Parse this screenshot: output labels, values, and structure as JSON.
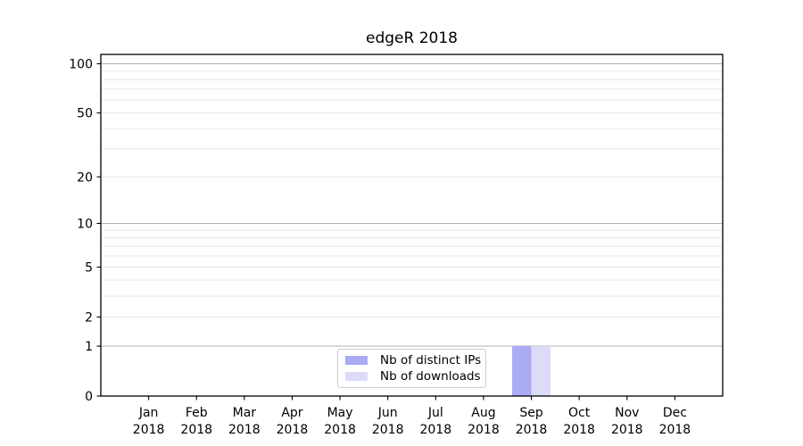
{
  "page": {
    "background": "#ffffff"
  },
  "chart_data": {
    "type": "bar",
    "title": "edgeR 2018",
    "categories": [
      "Jan",
      "Feb",
      "Mar",
      "Apr",
      "May",
      "Jun",
      "Jul",
      "Aug",
      "Sep",
      "Oct",
      "Nov",
      "Dec"
    ],
    "x_year_label": "2018",
    "series": [
      {
        "name": "Nb of distinct IPs",
        "color": "#aaaaf5",
        "values": [
          0,
          0,
          0,
          0,
          0,
          0,
          0,
          0,
          1,
          0,
          0,
          0
        ]
      },
      {
        "name": "Nb of downloads",
        "color": "#dcdcf8",
        "values": [
          0,
          0,
          0,
          0,
          0,
          0,
          0,
          0,
          1,
          0,
          0,
          0
        ]
      }
    ],
    "yscale": "log1p",
    "ylim": [
      0,
      114
    ],
    "yticks": [
      0,
      1,
      2,
      5,
      10,
      20,
      50,
      100
    ],
    "major_gridlines": [
      1,
      10,
      100
    ],
    "minor_gridlines": [
      2,
      3,
      4,
      5,
      6,
      7,
      8,
      9,
      20,
      30,
      40,
      50,
      60,
      70,
      80,
      90
    ],
    "grid_major_color": "#b0b0b0",
    "grid_minor_color": "#e7e7e7",
    "spine_color": "#000000",
    "legend": {
      "position": "lower center"
    },
    "xlabel": "",
    "ylabel": ""
  }
}
